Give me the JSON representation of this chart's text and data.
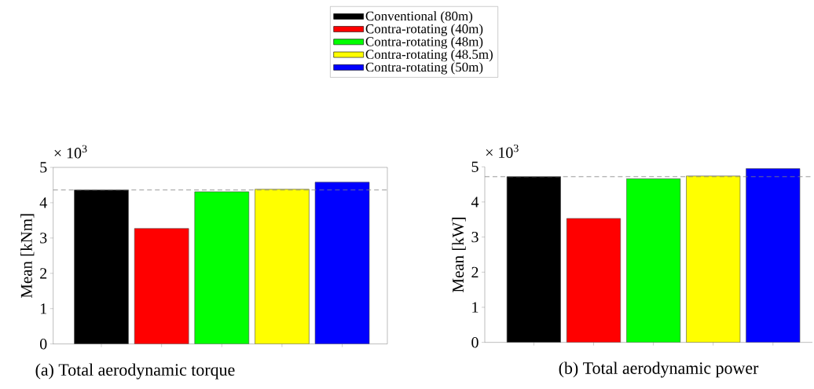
{
  "chart_data": [
    {
      "type": "bar",
      "title": "(a) Total aerodynamic torque",
      "ylabel": "Mean [kNm]",
      "annotations": [
        "× 10$^{3}$"
      ],
      "categories": [
        null,
        null,
        null,
        null,
        null
      ],
      "series": [
        {
          "name": "Conventional (80m)",
          "color": "#000000",
          "values": [
            4.36,
            null,
            null,
            null,
            null
          ]
        },
        {
          "name": "Contra-rotating (40m)",
          "color": "#ff0000",
          "values": [
            null,
            3.27,
            null,
            null,
            null
          ]
        },
        {
          "name": "Contra-rotating (48m)",
          "color": "#00ff00",
          "values": [
            null,
            null,
            4.31,
            null,
            null
          ]
        },
        {
          "name": "Contra-rotating (48.5m)",
          "color": "#ffff00",
          "values": [
            null,
            null,
            null,
            4.38,
            null
          ]
        },
        {
          "name": "Contra-rotating (50m)",
          "color": "#0000ff",
          "values": [
            null,
            null,
            null,
            null,
            4.58
          ]
        }
      ],
      "ylim": [
        0,
        5
      ],
      "yticks": [
        0,
        1,
        2,
        3,
        4,
        5
      ],
      "ref_lines": [
        {
          "axis": "y",
          "value": 4.36,
          "color": "#808080",
          "line_style": "dashed"
        }
      ],
      "legend": "top"
    },
    {
      "type": "bar",
      "title": "(b) Total aerodynamic power",
      "ylabel": "Mean [kW]",
      "annotations": [
        "× 10$^{3}$"
      ],
      "categories": [
        null,
        null,
        null,
        null,
        null
      ],
      "series": [
        {
          "color": "#000000",
          "values": [
            4.72,
            null,
            null,
            null,
            null
          ]
        },
        {
          "color": "#ff0000",
          "values": [
            null,
            3.53,
            null,
            null,
            null
          ]
        },
        {
          "color": "#00ff00",
          "values": [
            null,
            null,
            4.66,
            null,
            null
          ]
        },
        {
          "color": "#ffff00",
          "values": [
            null,
            null,
            null,
            4.74,
            null
          ]
        },
        {
          "color": "#0000ff",
          "values": [
            null,
            null,
            null,
            null,
            4.95
          ]
        }
      ],
      "ylim": [
        0,
        5
      ],
      "yticks": [
        0,
        1,
        2,
        3,
        4,
        5
      ],
      "ref_lines": [
        {
          "axis": "y",
          "value": 4.72,
          "color": "#808080",
          "line_style": "dashed"
        }
      ]
    }
  ]
}
